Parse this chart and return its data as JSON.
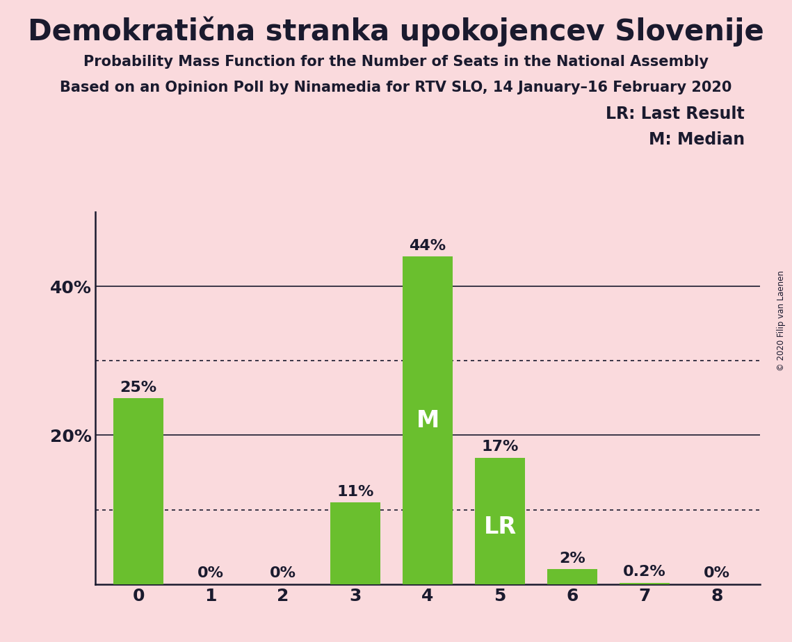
{
  "title": "Demokratična stranka upokojencev Slovenije",
  "subtitle1": "Probability Mass Function for the Number of Seats in the National Assembly",
  "subtitle2": "Based on an Opinion Poll by Ninamedia for RTV SLO, 14 January–16 February 2020",
  "copyright": "© 2020 Filip van Laenen",
  "categories": [
    0,
    1,
    2,
    3,
    4,
    5,
    6,
    7,
    8
  ],
  "values": [
    0.25,
    0.0,
    0.0,
    0.11,
    0.44,
    0.17,
    0.02,
    0.002,
    0.0
  ],
  "labels": [
    "25%",
    "0%",
    "0%",
    "11%",
    "44%",
    "17%",
    "2%",
    "0.2%",
    "0%"
  ],
  "bar_color": "#6abf2e",
  "background_color": "#fadadd",
  "text_color": "#1a1a2e",
  "median_bar": 4,
  "lr_bar": 5,
  "median_label": "M",
  "lr_label": "LR",
  "legend_lr": "LR: Last Result",
  "legend_m": "M: Median",
  "ylim": [
    0,
    0.5
  ],
  "yticks": [
    0.2,
    0.4
  ],
  "ytick_labels": [
    "20%",
    "40%"
  ],
  "solid_gridlines": [
    0.2,
    0.4
  ],
  "dotted_gridlines": [
    0.1,
    0.3
  ],
  "title_fontsize": 30,
  "subtitle_fontsize": 15,
  "label_fontsize": 16,
  "tick_fontsize": 18,
  "legend_fontsize": 17,
  "inside_label_fontsize": 24
}
